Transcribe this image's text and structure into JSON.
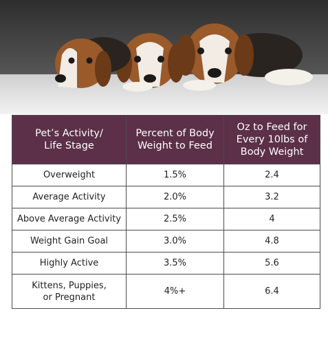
{
  "table": {
    "header": [
      [
        "Pet’s Activity/",
        "Life Stage"
      ],
      [
        "Percent of Body",
        "Weight to Feed"
      ],
      [
        "Oz to Feed for",
        "Every 10lbs of",
        "Body Weight"
      ]
    ],
    "rows": [
      [
        [
          "Overweight"
        ],
        [
          "1.5%"
        ],
        [
          "2.4"
        ]
      ],
      [
        [
          "Average Activity"
        ],
        [
          "2.0%"
        ],
        [
          "3.2"
        ]
      ],
      [
        [
          "Above Average Activity"
        ],
        [
          "2.5%"
        ],
        [
          "4"
        ]
      ],
      [
        [
          "Weight Gain Goal"
        ],
        [
          "3.0%"
        ],
        [
          "4.8"
        ]
      ],
      [
        [
          "Highly Active"
        ],
        [
          "3.5%"
        ],
        [
          "5.6"
        ]
      ],
      [
        [
          "Kittens, Puppies,",
          "or Pregnant"
        ],
        [
          "4%+"
        ],
        [
          "6.4"
        ]
      ]
    ]
  }
}
